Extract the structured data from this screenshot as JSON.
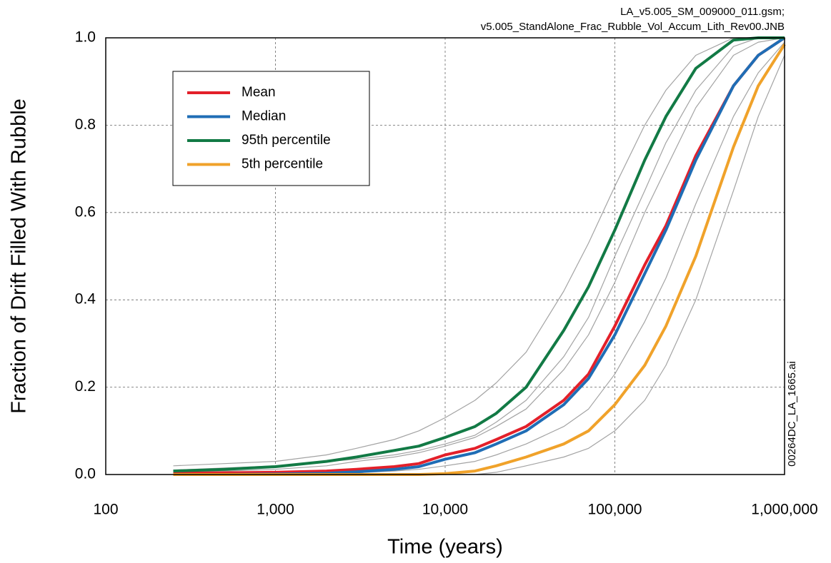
{
  "chart_data": {
    "type": "line",
    "annotations": [
      "LA_v5.005_SM_009000_011.gsm;",
      "v5.005_StandAlone_Frac_Rubble_Vol_Accum_Lith_Rev00.JNB",
      "00264DC_LA_1665.ai"
    ],
    "xlabel": "Time (years)",
    "ylabel": "Fraction of Drift Filled With Rubble",
    "xscale": "log",
    "grid": true,
    "legend": "upper left",
    "xlim": [
      100,
      1000000
    ],
    "ylim": [
      0,
      1
    ],
    "xticks": [
      100,
      {
        "value": 1000,
        "label": "1,000"
      },
      {
        "value": 10000,
        "label": "10,000"
      },
      {
        "value": 100000,
        "label": "100,000"
      },
      {
        "value": 1000000,
        "label": "1,000,000"
      }
    ],
    "yticks": [
      {
        "value": 0,
        "label": "0.0"
      },
      0.2,
      0.4,
      0.6,
      0.8,
      {
        "value": 1,
        "label": "1.0"
      }
    ],
    "x": [
      250,
      500,
      1000,
      2000,
      3000,
      5000,
      7000,
      10000,
      15000,
      20000,
      30000,
      50000,
      70000,
      100000,
      150000,
      200000,
      300000,
      500000,
      700000,
      1000000
    ],
    "series": [
      {
        "color": "#a3a3a3",
        "values": [
          0.02,
          0.025,
          0.03,
          0.045,
          0.06,
          0.08,
          0.1,
          0.13,
          0.17,
          0.21,
          0.28,
          0.42,
          0.53,
          0.66,
          0.8,
          0.88,
          0.96,
          1.0,
          1.0,
          1.0
        ]
      },
      {
        "color": "#a3a3a3",
        "values": [
          0.0,
          0.0,
          0.0,
          0.0,
          0.0,
          0.0,
          0.0,
          0.0,
          0.0,
          0.005,
          0.02,
          0.04,
          0.06,
          0.1,
          0.17,
          0.25,
          0.4,
          0.65,
          0.82,
          0.96
        ]
      },
      {
        "color": "#a3a3a3",
        "values": [
          0.005,
          0.008,
          0.012,
          0.02,
          0.03,
          0.04,
          0.05,
          0.065,
          0.085,
          0.11,
          0.15,
          0.24,
          0.32,
          0.44,
          0.6,
          0.7,
          0.84,
          0.96,
          0.99,
          1.0
        ]
      },
      {
        "color": "#a3a3a3",
        "values": [
          0.0,
          0.0,
          0.0,
          0.002,
          0.004,
          0.008,
          0.012,
          0.02,
          0.03,
          0.045,
          0.07,
          0.11,
          0.15,
          0.23,
          0.35,
          0.45,
          0.62,
          0.82,
          0.92,
          0.99
        ]
      },
      {
        "color": "#a3a3a3",
        "values": [
          0.01,
          0.015,
          0.02,
          0.03,
          0.035,
          0.045,
          0.055,
          0.07,
          0.09,
          0.12,
          0.17,
          0.27,
          0.36,
          0.5,
          0.65,
          0.76,
          0.88,
          0.98,
          1.0,
          1.0
        ]
      },
      {
        "name": "Mean",
        "color": "#e3202a",
        "values": [
          0.003,
          0.004,
          0.005,
          0.008,
          0.012,
          0.018,
          0.025,
          0.045,
          0.06,
          0.08,
          0.11,
          0.17,
          0.23,
          0.34,
          0.48,
          0.57,
          0.73,
          0.89,
          0.96,
          1.0
        ]
      },
      {
        "name": "Median",
        "color": "#1f6db5",
        "values": [
          0.0,
          0.0,
          0.001,
          0.003,
          0.006,
          0.012,
          0.018,
          0.035,
          0.05,
          0.07,
          0.1,
          0.16,
          0.22,
          0.32,
          0.46,
          0.56,
          0.72,
          0.89,
          0.96,
          1.0
        ]
      },
      {
        "name": "95th percentile",
        "color": "#127a45",
        "values": [
          0.008,
          0.012,
          0.018,
          0.03,
          0.04,
          0.055,
          0.065,
          0.085,
          0.11,
          0.14,
          0.2,
          0.33,
          0.43,
          0.56,
          0.72,
          0.82,
          0.93,
          0.995,
          1.0,
          1.0
        ]
      },
      {
        "name": "5th percentile",
        "color": "#f0a22a",
        "values": [
          0.0,
          0.0,
          0.0,
          0.0,
          0.0,
          0.0,
          0.0,
          0.002,
          0.008,
          0.02,
          0.04,
          0.07,
          0.1,
          0.16,
          0.25,
          0.34,
          0.5,
          0.75,
          0.89,
          0.985
        ]
      }
    ]
  }
}
